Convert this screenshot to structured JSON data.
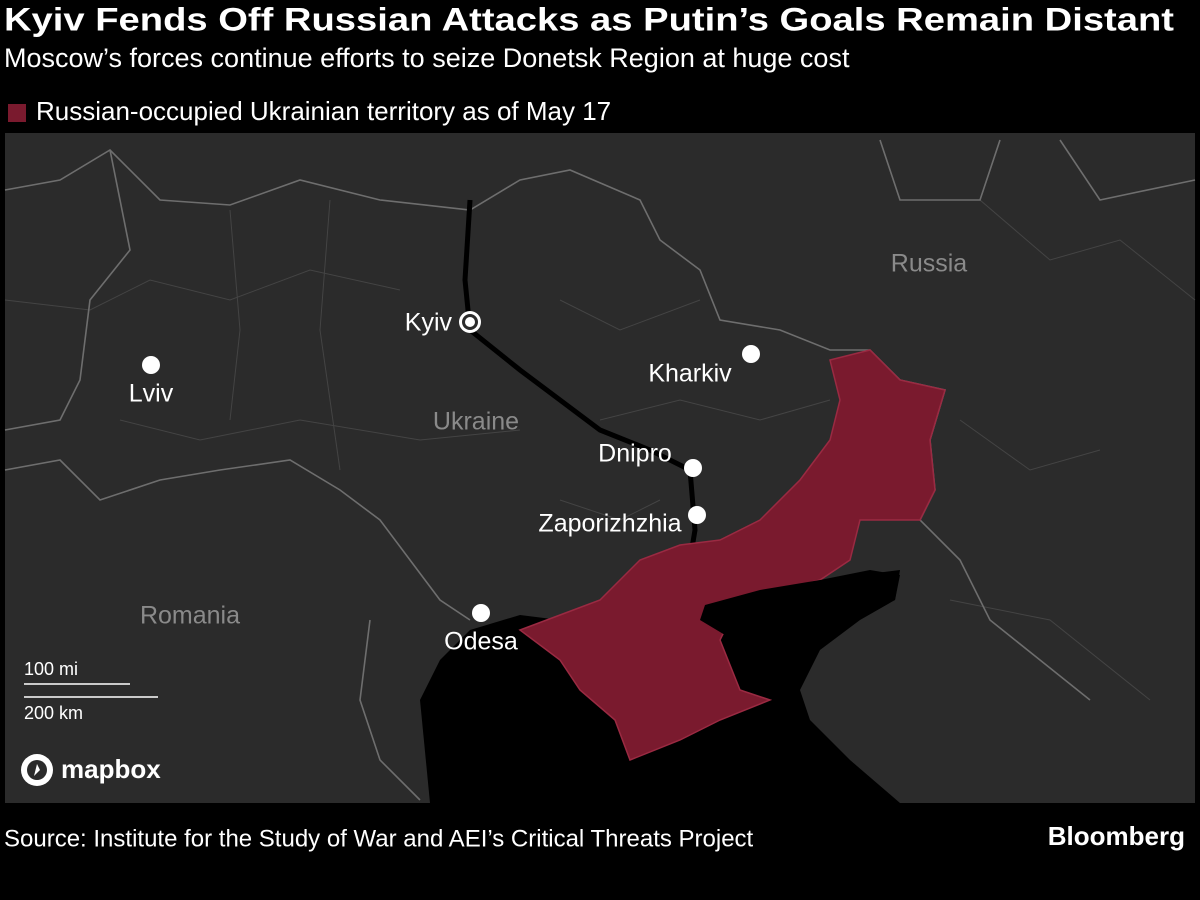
{
  "header": {
    "title": "Kyiv Fends Off Russian Attacks as Putin’s Goals Remain Distant",
    "subtitle": "Moscow’s forces continue efforts to seize Donetsk Region at huge cost"
  },
  "legend": {
    "label": "Russian-occupied Ukrainian territory as of May 17"
  },
  "map": {
    "cities": [
      "Kyiv",
      "Lviv",
      "Kharkiv",
      "Dnipro",
      "Zaporizhzhia",
      "Odesa"
    ],
    "countries": [
      "Russia",
      "Ukraine",
      "Romania"
    ],
    "scale": {
      "miles": "100 mi",
      "kilometers": "200 km"
    },
    "attribution": "mapbox"
  },
  "footer": {
    "source": "Source: Institute for the Study of War and AEI’s Critical Threats Project",
    "brand": "Bloomberg"
  }
}
